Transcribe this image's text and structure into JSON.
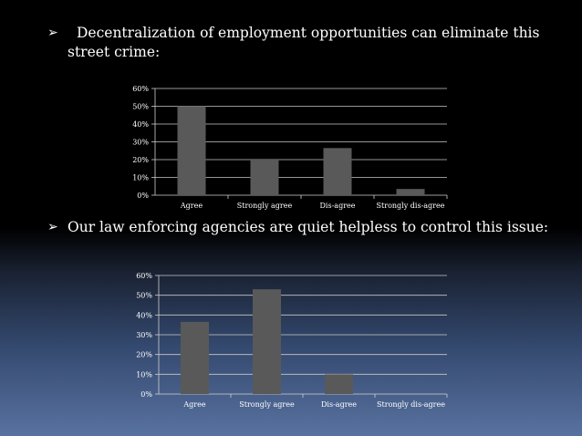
{
  "bullets": [
    {
      "line1": "Decentralization of employment opportunities can eliminate this",
      "line2": "street crime:"
    },
    {
      "line1": "Our law enforcing agencies are quiet helpless to control this issue:"
    }
  ],
  "arrow_glyph": "➢",
  "chart_data": [
    {
      "type": "bar",
      "categories": [
        "Agree",
        "Strongly agree",
        "Dis-agree",
        "Strongly dis-agree"
      ],
      "values": [
        50,
        20,
        26.5,
        3.5
      ],
      "ylim": [
        0,
        60
      ],
      "yticks": [
        "0%",
        "10%",
        "20%",
        "30%",
        "40%",
        "50%",
        "60%"
      ],
      "grid": true,
      "bar_color": "#595959",
      "xlabel": "",
      "ylabel": "",
      "title": ""
    },
    {
      "type": "bar",
      "categories": [
        "Agree",
        "Strongly agree",
        "Dis-agree",
        "Strongly dis-agree"
      ],
      "values": [
        36.5,
        53,
        10,
        0
      ],
      "ylim": [
        0,
        60
      ],
      "yticks": [
        "0%",
        "10%",
        "20%",
        "30%",
        "40%",
        "50%",
        "60%"
      ],
      "grid": true,
      "bar_color": "#595959",
      "xlabel": "",
      "ylabel": "",
      "title": ""
    }
  ]
}
